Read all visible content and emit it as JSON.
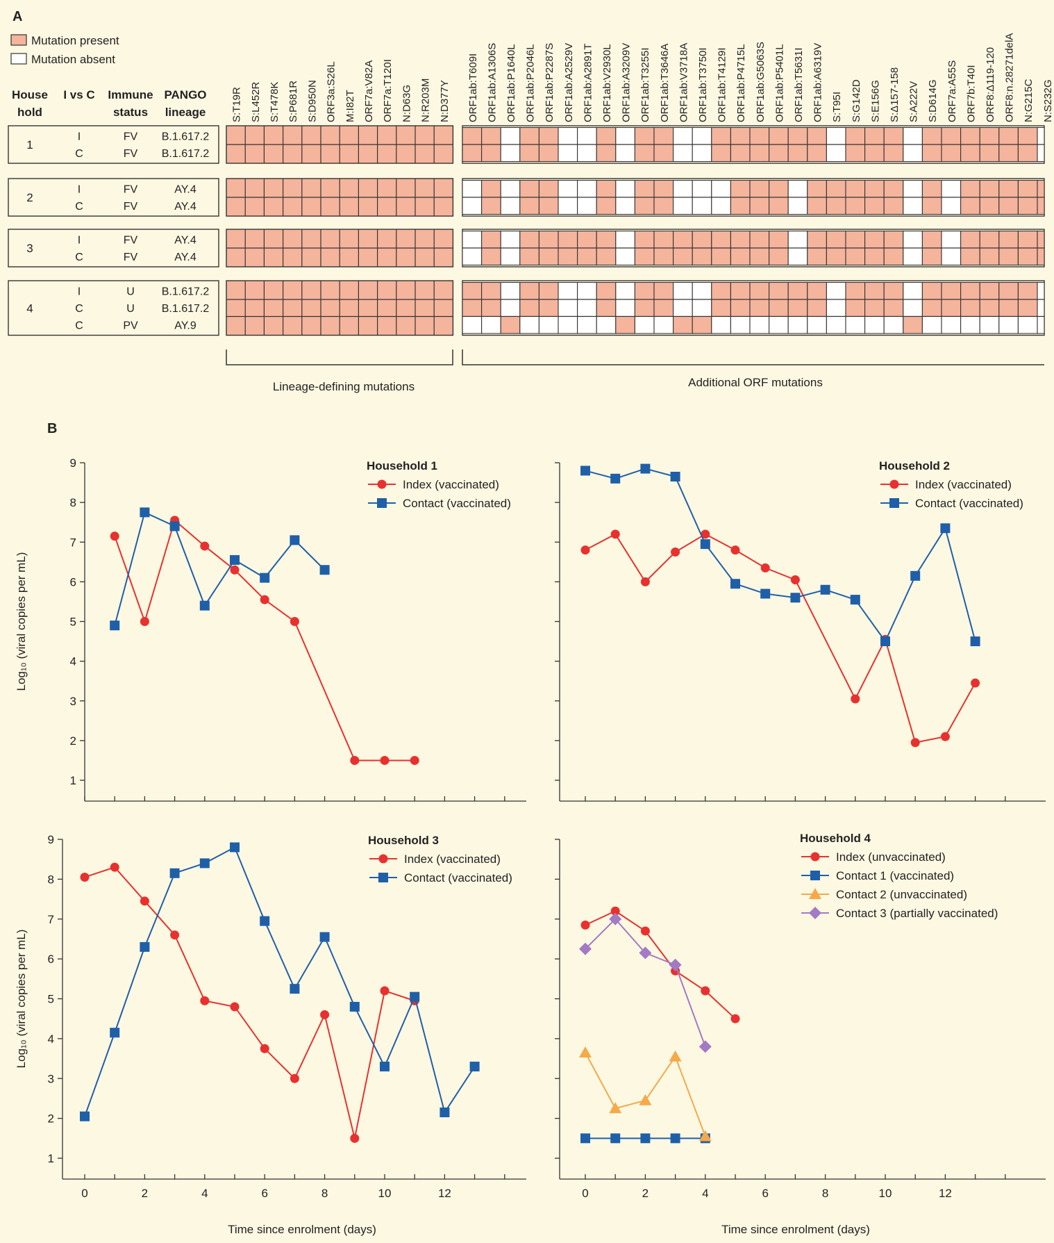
{
  "panelA": {
    "label": "A",
    "legend": [
      {
        "text": "Mutation present",
        "color": "#f5b49c"
      },
      {
        "text": "Mutation absent",
        "color": "#ffffff"
      }
    ],
    "headers": {
      "household": [
        "House",
        "hold"
      ],
      "ivsc": [
        "I vs C"
      ],
      "immune": [
        "Immune",
        "status"
      ],
      "pango": [
        "PANGO",
        "lineage"
      ]
    },
    "lineage_mutations": [
      "S:T19R",
      "S:L452R",
      "S:T478K",
      "S:P681R",
      "S:D950N",
      "ORF3a:S26L",
      "M:I82T",
      "ORF7a:V82A",
      "ORF7a:T120I",
      "N:D63G",
      "N:R203M",
      "N:D377Y"
    ],
    "orf_mutations": [
      "ORF1ab:T609I",
      "ORF1ab:A1306S",
      "ORF1ab:P1640L",
      "ORF1ab:P2046L",
      "ORF1ab:P2287S",
      "ORF1ab:A2529V",
      "ORF1ab:A2891T",
      "ORF1ab:V2930L",
      "ORF1ab:A3209V",
      "ORF1ab:T3255I",
      "ORF1ab:T3646A",
      "ORF1ab:V3718A",
      "ORF1ab:T3750I",
      "ORF1ab:T4129I",
      "ORF1ab:P4715L",
      "ORF1ab:G5063S",
      "ORF1ab:P5401L",
      "ORF1ab:T5631I",
      "ORF1ab:A6319V",
      "S:T95I",
      "S:G142D",
      "S:E156G",
      "S:Δ157-158",
      "S:A222V",
      "S:D614G",
      "ORF7a:A55S",
      "ORF7b:T40I",
      "ORF8:Δ119-120",
      "ORF8:n.28271delA",
      "N:G215C",
      "N:S232G"
    ],
    "group_labels": {
      "lineage": "Lineage-defining mutations",
      "orf": "Additional ORF mutations"
    },
    "households": [
      {
        "id": "1",
        "rows": [
          {
            "ivsc": "I",
            "status": "FV",
            "lineage": "B.1.617.2",
            "orf": [
              1,
              1,
              0,
              1,
              1,
              0,
              0,
              1,
              0,
              1,
              1,
              0,
              0,
              1,
              1,
              1,
              1,
              1,
              1,
              0,
              1,
              1,
              1,
              0,
              1,
              1,
              1,
              1,
              1,
              1,
              0
            ]
          },
          {
            "ivsc": "C",
            "status": "FV",
            "lineage": "B.1.617.2",
            "orf": [
              1,
              1,
              0,
              1,
              1,
              0,
              0,
              1,
              0,
              1,
              1,
              0,
              0,
              1,
              1,
              1,
              1,
              1,
              1,
              0,
              1,
              1,
              1,
              0,
              1,
              1,
              1,
              1,
              1,
              1,
              0
            ]
          }
        ]
      },
      {
        "id": "2",
        "rows": [
          {
            "ivsc": "I",
            "status": "FV",
            "lineage": "AY.4",
            "orf": [
              0,
              1,
              0,
              1,
              1,
              0,
              0,
              1,
              0,
              1,
              1,
              0,
              0,
              0,
              1,
              1,
              1,
              0,
              1,
              1,
              1,
              1,
              1,
              0,
              1,
              0,
              1,
              1,
              1,
              1,
              1
            ]
          },
          {
            "ivsc": "C",
            "status": "FV",
            "lineage": "AY.4",
            "orf": [
              0,
              1,
              0,
              1,
              1,
              0,
              0,
              1,
              0,
              1,
              1,
              0,
              0,
              0,
              1,
              1,
              1,
              0,
              1,
              1,
              1,
              1,
              1,
              0,
              1,
              0,
              1,
              1,
              1,
              1,
              1
            ]
          }
        ]
      },
      {
        "id": "3",
        "rows": [
          {
            "ivsc": "I",
            "status": "FV",
            "lineage": "AY.4",
            "orf": [
              0,
              1,
              0,
              1,
              1,
              1,
              1,
              1,
              0,
              1,
              1,
              1,
              1,
              1,
              1,
              1,
              1,
              0,
              1,
              1,
              1,
              1,
              1,
              0,
              1,
              0,
              1,
              1,
              1,
              1,
              1
            ]
          },
          {
            "ivsc": "C",
            "status": "FV",
            "lineage": "AY.4",
            "orf": [
              0,
              1,
              0,
              1,
              1,
              1,
              1,
              1,
              0,
              1,
              1,
              1,
              1,
              1,
              1,
              1,
              1,
              0,
              1,
              1,
              1,
              1,
              1,
              0,
              1,
              0,
              1,
              1,
              1,
              1,
              1
            ]
          }
        ]
      },
      {
        "id": "4",
        "rows": [
          {
            "ivsc": "I",
            "status": "U",
            "lineage": "B.1.617.2",
            "orf": [
              1,
              1,
              0,
              1,
              1,
              0,
              0,
              1,
              0,
              1,
              1,
              0,
              0,
              1,
              1,
              1,
              1,
              1,
              1,
              0,
              1,
              1,
              1,
              0,
              1,
              1,
              1,
              1,
              1,
              1,
              0
            ]
          },
          {
            "ivsc": "C",
            "status": "U",
            "lineage": "B.1.617.2",
            "orf": [
              1,
              1,
              0,
              1,
              1,
              0,
              0,
              1,
              0,
              1,
              1,
              0,
              0,
              1,
              1,
              1,
              1,
              1,
              1,
              0,
              1,
              1,
              1,
              0,
              1,
              1,
              1,
              1,
              1,
              1,
              0
            ]
          },
          {
            "ivsc": "C",
            "status": "PV",
            "lineage": "AY.9",
            "orf": [
              0,
              0,
              1,
              0,
              0,
              0,
              0,
              0,
              1,
              0,
              0,
              1,
              1,
              0,
              0,
              0,
              0,
              0,
              0,
              0,
              0,
              0,
              0,
              1,
              0,
              0,
              0,
              0,
              0,
              0,
              0
            ]
          }
        ]
      }
    ]
  },
  "panelB": {
    "label": "B",
    "ylabel": "Log₁₀ (viral copies per mL)",
    "xlabel": "Time since enrolment (days)",
    "colors": {
      "index": "#e8312f",
      "contact": "#1f5fa8",
      "contact2": "#f5a94a",
      "contact3": "#a37ac4"
    }
  },
  "chart_data": [
    {
      "type": "line",
      "title": "Household 1",
      "xlabel": "",
      "ylabel": "Log₁₀ (viral copies per mL)",
      "xlim": [
        -0.5,
        14.5
      ],
      "ylim": [
        0.7,
        9
      ],
      "series": [
        {
          "name": "Index (vaccinated)",
          "marker": "circle",
          "color": "#e8312f",
          "x": [
            1,
            2,
            3,
            4,
            5,
            6,
            7,
            9,
            10,
            11
          ],
          "y": [
            7.15,
            5.0,
            7.55,
            6.9,
            6.3,
            5.55,
            5.0,
            1.5,
            1.5,
            1.5
          ]
        },
        {
          "name": "Contact (vaccinated)",
          "marker": "square",
          "color": "#1f5fa8",
          "x": [
            1,
            2,
            3,
            4,
            5,
            6,
            7,
            8
          ],
          "y": [
            4.9,
            7.75,
            7.4,
            5.4,
            6.55,
            6.1,
            7.05,
            6.3
          ]
        }
      ]
    },
    {
      "type": "line",
      "title": "Household 2",
      "xlabel": "",
      "ylabel": "",
      "xlim": [
        -0.5,
        14.5
      ],
      "ylim": [
        0.7,
        9
      ],
      "series": [
        {
          "name": "Index (vaccinated)",
          "marker": "circle",
          "color": "#e8312f",
          "x": [
            0,
            1,
            2,
            3,
            4,
            5,
            6,
            7,
            9,
            10,
            11,
            12,
            13
          ],
          "y": [
            6.8,
            7.2,
            6.0,
            6.75,
            7.2,
            6.8,
            6.35,
            6.05,
            3.05,
            4.55,
            1.95,
            2.1,
            3.45
          ]
        },
        {
          "name": "Contact (vaccinated)",
          "marker": "square",
          "color": "#1f5fa8",
          "x": [
            0,
            1,
            2,
            3,
            4,
            5,
            6,
            7,
            8,
            9,
            10,
            11,
            12,
            13
          ],
          "y": [
            8.8,
            8.6,
            8.85,
            8.65,
            6.95,
            5.95,
            5.7,
            5.6,
            5.8,
            5.55,
            4.5,
            6.15,
            7.35,
            4.5
          ]
        }
      ]
    },
    {
      "type": "line",
      "title": "Household 3",
      "xlabel": "Time since enrolment (days)",
      "ylabel": "Log₁₀ (viral copies per mL)",
      "xticks": [
        0,
        2,
        4,
        6,
        8,
        10,
        12
      ],
      "xlim": [
        -0.5,
        14.5
      ],
      "ylim": [
        0.7,
        9
      ],
      "series": [
        {
          "name": "Index (vaccinated)",
          "marker": "circle",
          "color": "#e8312f",
          "x": [
            0,
            1,
            2,
            3,
            4,
            5,
            6,
            7,
            8,
            9,
            10,
            11
          ],
          "y": [
            8.05,
            8.3,
            7.45,
            6.6,
            4.95,
            4.8,
            3.75,
            3.0,
            4.6,
            1.5,
            5.2,
            4.95
          ]
        },
        {
          "name": "Contact (vaccinated)",
          "marker": "square",
          "color": "#1f5fa8",
          "x": [
            0,
            1,
            2,
            3,
            4,
            5,
            6,
            7,
            8,
            9,
            10,
            11,
            12,
            13
          ],
          "y": [
            2.05,
            4.15,
            6.3,
            8.15,
            8.4,
            8.8,
            6.95,
            5.25,
            6.55,
            4.8,
            3.3,
            5.05,
            2.15,
            3.3
          ]
        }
      ]
    },
    {
      "type": "line",
      "title": "Household 4",
      "xlabel": "Time since enrolment (days)",
      "ylabel": "",
      "xticks": [
        0,
        2,
        4,
        6,
        8,
        10,
        12
      ],
      "xlim": [
        -0.5,
        14.5
      ],
      "ylim": [
        0.7,
        9
      ],
      "series": [
        {
          "name": "Index (unvaccinated)",
          "marker": "circle",
          "color": "#e8312f",
          "x": [
            0,
            1,
            2,
            3,
            4,
            5
          ],
          "y": [
            6.85,
            7.2,
            6.7,
            5.7,
            5.2,
            4.5
          ]
        },
        {
          "name": "Contact 1 (vaccinated)",
          "marker": "square",
          "color": "#1f5fa8",
          "x": [
            0,
            1,
            2,
            3,
            4
          ],
          "y": [
            1.5,
            1.5,
            1.5,
            1.5,
            1.5
          ]
        },
        {
          "name": "Contact 2 (unvaccinated)",
          "marker": "triangle",
          "color": "#f5a94a",
          "x": [
            0,
            1,
            2,
            3,
            4
          ],
          "y": [
            3.65,
            2.25,
            2.45,
            3.55,
            1.55
          ]
        },
        {
          "name": "Contact 3 (partially vaccinated)",
          "marker": "diamond",
          "color": "#a37ac4",
          "x": [
            0,
            1,
            2,
            3,
            4
          ],
          "y": [
            6.25,
            7.0,
            6.15,
            5.85,
            3.8
          ]
        }
      ]
    }
  ]
}
